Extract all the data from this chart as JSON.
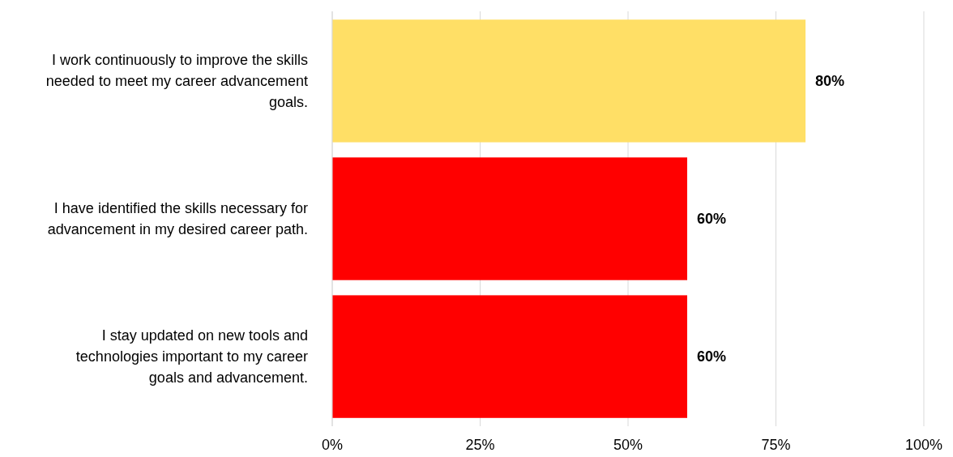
{
  "chart_data": {
    "type": "bar",
    "orientation": "horizontal",
    "categories": [
      "I work continuously to improve the skills needed to meet my career advancement goals.",
      "I have identified the skills necessary for advancement in my desired career path.",
      "I stay updated on new tools and technologies important to my career goals and advancement."
    ],
    "values": [
      80,
      60,
      60
    ],
    "colors": [
      "#ffdf66",
      "#ff0000",
      "#ff0000"
    ],
    "xlim": [
      0,
      100
    ],
    "xticks": [
      {
        "value": 0,
        "label": "0%"
      },
      {
        "value": 25,
        "label": "25%"
      },
      {
        "value": 50,
        "label": "50%"
      },
      {
        "value": 75,
        "label": "75%"
      },
      {
        "value": 100,
        "label": "100%"
      }
    ],
    "value_labels": [
      "80%",
      "60%",
      "60%"
    ],
    "grid": "x"
  }
}
